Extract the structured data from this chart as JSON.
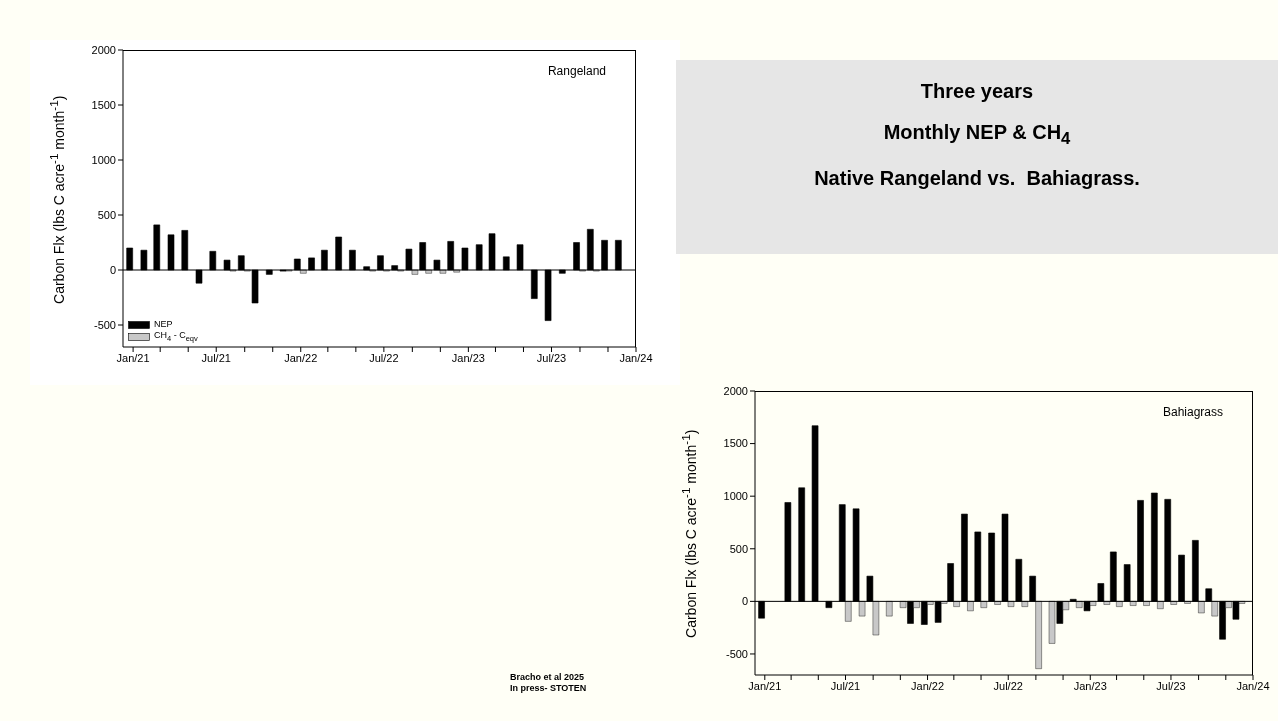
{
  "chart_data": [
    {
      "type": "bar",
      "title": "Rangeland",
      "ylabel": "Carbon Flx (lbs C acre$^{-1}$ month$^{-1}$)",
      "x": [
        "2021-01",
        "2021-02",
        "2021-03",
        "2021-04",
        "2021-05",
        "2021-06",
        "2021-07",
        "2021-08",
        "2021-09",
        "2021-10",
        "2021-11",
        "2021-12",
        "2022-01",
        "2022-02",
        "2022-03",
        "2022-04",
        "2022-05",
        "2022-06",
        "2022-07",
        "2022-08",
        "2022-09",
        "2022-10",
        "2022-11",
        "2022-12",
        "2023-01",
        "2023-02",
        "2023-03",
        "2023-04",
        "2023-05",
        "2023-06",
        "2023-07",
        "2023-08",
        "2023-09",
        "2023-10",
        "2023-11",
        "2023-12"
      ],
      "xlim": [
        "2020-12-10",
        "2024-01-01"
      ],
      "xticks": [
        {
          "value": "2021-01",
          "label": "Jan/21"
        },
        {
          "value": "2021-03",
          "label": null
        },
        {
          "value": "2021-05",
          "label": null
        },
        {
          "value": "2021-07",
          "label": "Jul/21"
        },
        {
          "value": "2021-09",
          "label": null
        },
        {
          "value": "2021-11",
          "label": null
        },
        {
          "value": "2022-01",
          "label": "Jan/22"
        },
        {
          "value": "2022-03",
          "label": null
        },
        {
          "value": "2022-05",
          "label": null
        },
        {
          "value": "2022-07",
          "label": "Jul/22"
        },
        {
          "value": "2022-09",
          "label": null
        },
        {
          "value": "2022-11",
          "label": null
        },
        {
          "value": "2023-01",
          "label": "Jan/23"
        },
        {
          "value": "2023-03",
          "label": null
        },
        {
          "value": "2023-05",
          "label": null
        },
        {
          "value": "2023-07",
          "label": "Jul/23"
        },
        {
          "value": "2023-09",
          "label": null
        },
        {
          "value": "2023-11",
          "label": null
        },
        {
          "value": "2024-01",
          "label": "Jan/24"
        }
      ],
      "ylim": [
        -700,
        2000
      ],
      "yticks": [
        -500,
        0,
        500,
        1000,
        1500,
        2000
      ],
      "series": [
        {
          "name": "NEP",
          "color": "#000000",
          "values": [
            200,
            180,
            410,
            320,
            360,
            -120,
            170,
            90,
            130,
            -300,
            -40,
            -10,
            100,
            110,
            180,
            300,
            180,
            30,
            130,
            40,
            190,
            250,
            90,
            260,
            200,
            230,
            330,
            120,
            230,
            -260,
            -460,
            -30,
            250,
            370,
            270,
            270
          ]
        },
        {
          "name": "CH$_{4}$ - C$_{eqv}$",
          "color": "#c8c8c8",
          "values": [
            0,
            0,
            0,
            0,
            0,
            0,
            0,
            -10,
            -10,
            0,
            0,
            -10,
            -30,
            0,
            0,
            0,
            0,
            -10,
            -10,
            -10,
            -40,
            -30,
            -30,
            -20,
            0,
            0,
            0,
            0,
            0,
            0,
            0,
            0,
            -10,
            -10,
            0,
            0
          ]
        }
      ],
      "legend": "bottom left",
      "ref_lines": [
        {
          "axis": "y",
          "value": 0
        }
      ],
      "annotations": [
        "Bracho et al 2025",
        "In press- STOTEN"
      ]
    },
    {
      "type": "other",
      "title": "Three years",
      "annotations": [
        "Monthly NEP & CH$_{4}$",
        "Native Rangeland vs.  Bahiagrass."
      ]
    },
    {
      "type": "bar",
      "title": "Bahiagrass",
      "ylabel": "Carbon Flx (lbs C acre$^{-1}$ month$^{-1}$)",
      "x": [
        "2021-01",
        "2021-02",
        "2021-03",
        "2021-04",
        "2021-05",
        "2021-06",
        "2021-07",
        "2021-08",
        "2021-09",
        "2021-10",
        "2021-11",
        "2021-12",
        "2022-01",
        "2022-02",
        "2022-03",
        "2022-04",
        "2022-05",
        "2022-06",
        "2022-07",
        "2022-08",
        "2022-09",
        "2022-10",
        "2022-11",
        "2022-12",
        "2023-01",
        "2023-02",
        "2023-03",
        "2023-04",
        "2023-05",
        "2023-06",
        "2023-07",
        "2023-08",
        "2023-09",
        "2023-10",
        "2023-11",
        "2023-12"
      ],
      "xlim": [
        "2020-12-10",
        "2024-01-01"
      ],
      "xticks": [
        {
          "value": "2021-01",
          "label": "Jan/21"
        },
        {
          "value": "2021-03",
          "label": null
        },
        {
          "value": "2021-05",
          "label": null
        },
        {
          "value": "2021-07",
          "label": "Jul/21"
        },
        {
          "value": "2021-09",
          "label": null
        },
        {
          "value": "2021-11",
          "label": null
        },
        {
          "value": "2022-01",
          "label": "Jan/22"
        },
        {
          "value": "2022-03",
          "label": null
        },
        {
          "value": "2022-05",
          "label": null
        },
        {
          "value": "2022-07",
          "label": "Jul/22"
        },
        {
          "value": "2022-09",
          "label": null
        },
        {
          "value": "2022-11",
          "label": null
        },
        {
          "value": "2023-01",
          "label": "Jan/23"
        },
        {
          "value": "2023-03",
          "label": null
        },
        {
          "value": "2023-05",
          "label": null
        },
        {
          "value": "2023-07",
          "label": "Jul/23"
        },
        {
          "value": "2023-09",
          "label": null
        },
        {
          "value": "2023-11",
          "label": null
        },
        {
          "value": "2024-01",
          "label": "Jan/24"
        }
      ],
      "ylim": [
        -700,
        2000
      ],
      "yticks": [
        -500,
        0,
        500,
        1000,
        1500,
        2000
      ],
      "series": [
        {
          "color": "#000000",
          "values": [
            -160,
            0,
            940,
            1080,
            1670,
            -60,
            920,
            880,
            240,
            null,
            0,
            -210,
            -220,
            -200,
            360,
            830,
            660,
            650,
            830,
            400,
            240,
            0,
            -210,
            20,
            -90,
            170,
            470,
            350,
            960,
            1030,
            970,
            440,
            580,
            120,
            -360,
            -170
          ]
        },
        {
          "color": "#c8c8c8",
          "values": [
            0,
            0,
            0,
            0,
            0,
            0,
            -190,
            -140,
            -320,
            -140,
            -60,
            -60,
            -30,
            -20,
            -50,
            -90,
            -60,
            -30,
            -50,
            -50,
            -640,
            -400,
            -80,
            -60,
            -40,
            -30,
            -50,
            -40,
            -40,
            -70,
            -30,
            -20,
            -110,
            -140,
            -60,
            -20
          ]
        }
      ],
      "ref_lines": [
        {
          "axis": "y",
          "value": 0
        }
      ]
    }
  ]
}
